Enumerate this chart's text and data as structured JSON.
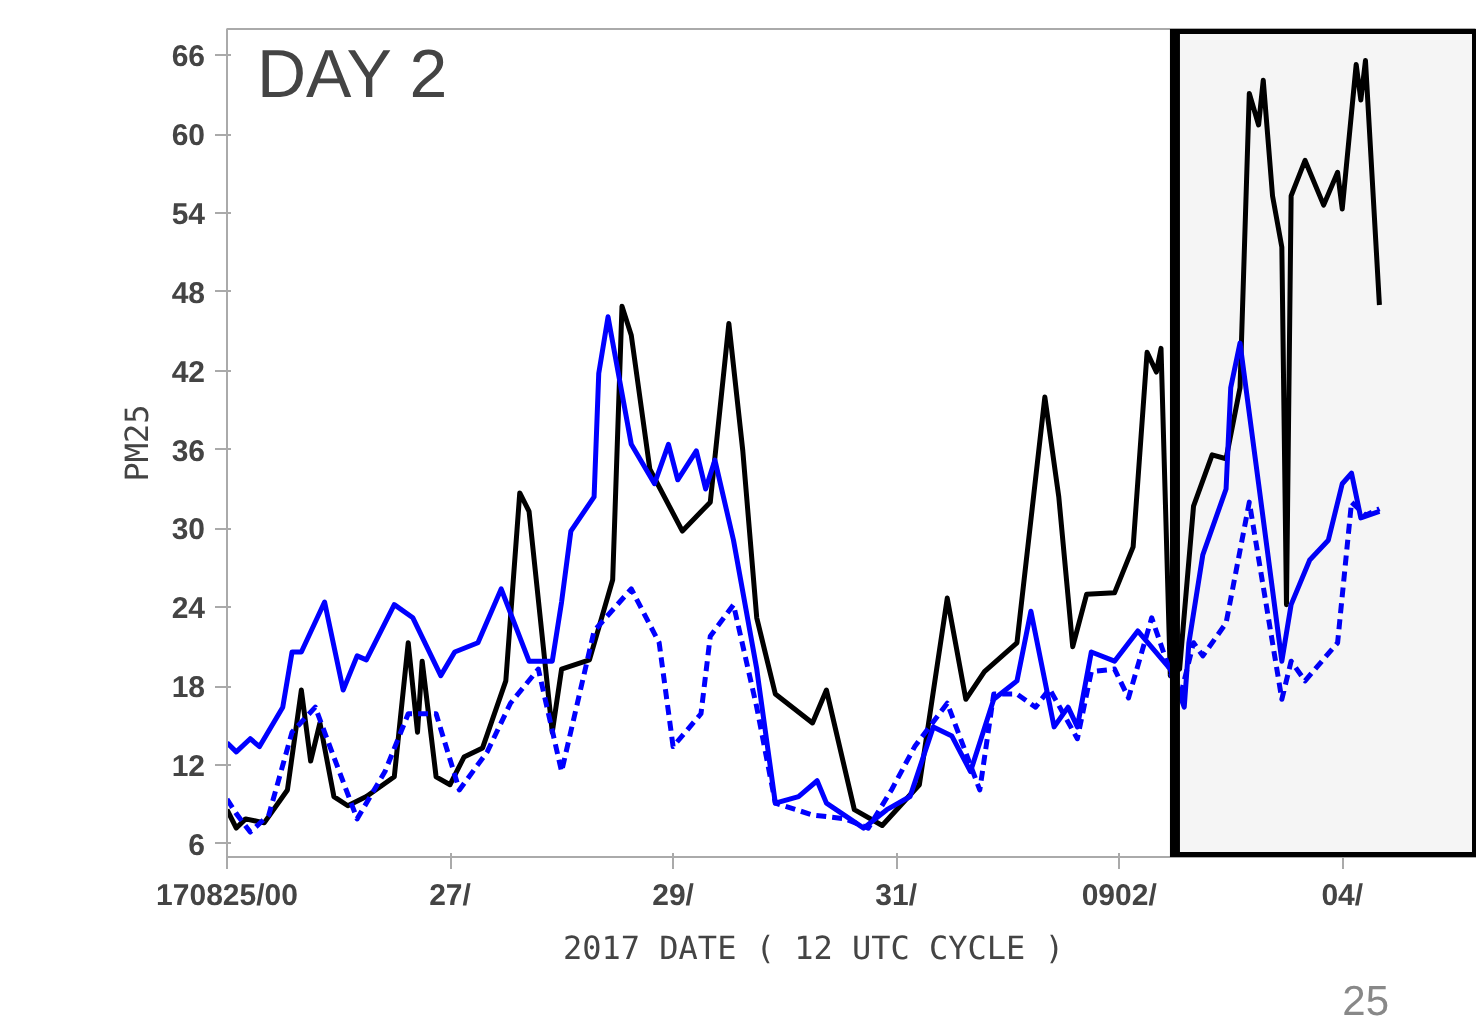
{
  "chart_data": {
    "type": "line",
    "xlabel": "2017    DATE  ( 12 UTC CYCLE )",
    "ylabel": "PM25",
    "annotations": [
      "DAY 2",
      "25"
    ],
    "xlim": [
      "2017-08-25T00:00",
      "2017-09-05T05:00"
    ],
    "ylim": [
      5,
      68
    ],
    "xticks": [
      {
        "value": "2017-08-25T00:00",
        "label": "170825/00"
      },
      {
        "value": "2017-08-27T00:00",
        "label": "27/"
      },
      {
        "value": "2017-08-29T00:00",
        "label": "29/"
      },
      {
        "value": "2017-08-31T00:00",
        "label": "31/"
      },
      {
        "value": "2017-09-02T00:00",
        "label": "0902/"
      },
      {
        "value": "2017-09-04T00:00",
        "label": "04/"
      }
    ],
    "yticks": [
      6,
      12,
      18,
      24,
      30,
      36,
      42,
      48,
      54,
      60,
      66
    ],
    "grid": false,
    "bands": [
      {
        "axis": "x",
        "from": "2017-09-02T12:00",
        "to": "2017-09-05T05:00",
        "color": "#000000"
      }
    ],
    "series": [
      {
        "color": "#000000",
        "line_style": "solid",
        "x": [
          "2017-08-25T00:00",
          "2017-08-25T02:00",
          "2017-08-25T04:00",
          "2017-08-25T08:00",
          "2017-08-25T13:00",
          "2017-08-25T16:00",
          "2017-08-25T18:00",
          "2017-08-25T20:00",
          "2017-08-25T23:00",
          "2017-08-26T02:00",
          "2017-08-26T06:00",
          "2017-08-26T12:00",
          "2017-08-26T15:00",
          "2017-08-26T17:00",
          "2017-08-26T18:00",
          "2017-08-26T21:00",
          "2017-08-27T00:00",
          "2017-08-27T03:00",
          "2017-08-27T07:00",
          "2017-08-27T12:00",
          "2017-08-27T15:00",
          "2017-08-27T17:00",
          "2017-08-27T22:00",
          "2017-08-28T00:00",
          "2017-08-28T06:00",
          "2017-08-28T11:00",
          "2017-08-28T13:00",
          "2017-08-28T15:00",
          "2017-08-28T19:00",
          "2017-08-29T02:00",
          "2017-08-29T08:00",
          "2017-08-29T12:00",
          "2017-08-29T15:00",
          "2017-08-29T18:00",
          "2017-08-29T22:00",
          "2017-08-30T06:00",
          "2017-08-30T09:00",
          "2017-08-30T15:00",
          "2017-08-30T21:00",
          "2017-08-31T05:00",
          "2017-08-31T11:00",
          "2017-08-31T15:00",
          "2017-08-31T19:00",
          "2017-09-01T02:00",
          "2017-09-01T08:00",
          "2017-09-01T11:00",
          "2017-09-01T14:00",
          "2017-09-01T17:00",
          "2017-09-01T23:00",
          "2017-09-02T03:00",
          "2017-09-02T06:00",
          "2017-09-02T08:00",
          "2017-09-02T09:00",
          "2017-09-02T11:00",
          "2017-09-02T13:00",
          "2017-09-02T16:00",
          "2017-09-02T20:00",
          "2017-09-02T23:00",
          "2017-09-03T02:00",
          "2017-09-03T04:00",
          "2017-09-03T06:00",
          "2017-09-03T07:00",
          "2017-09-03T09:00",
          "2017-09-03T11:00",
          "2017-09-03T12:00",
          "2017-09-03T13:00",
          "2017-09-03T16:00",
          "2017-09-03T20:00",
          "2017-09-03T23:00",
          "2017-09-04T00:00",
          "2017-09-04T03:00",
          "2017-09-04T04:00",
          "2017-09-04T05:00",
          "2017-09-04T08:00"
        ],
        "values": [
          8.6,
          7.2,
          7.9,
          7.6,
          10.1,
          17.7,
          12.3,
          15.2,
          9.6,
          8.9,
          9.6,
          11.1,
          21.3,
          14.5,
          19.9,
          11.1,
          10.5,
          12.6,
          13.3,
          18.4,
          32.7,
          31.3,
          14.5,
          19.3,
          20.0,
          26.1,
          46.9,
          44.7,
          34.5,
          29.8,
          32.0,
          45.6,
          35.9,
          23.2,
          17.4,
          15.2,
          17.7,
          8.6,
          7.4,
          10.5,
          24.7,
          17.0,
          19.1,
          21.3,
          40.0,
          32.4,
          21.0,
          25.0,
          25.1,
          28.6,
          43.4,
          41.9,
          43.7,
          18.8,
          19.3,
          31.7,
          35.6,
          35.3,
          40.7,
          63.1,
          60.7,
          64.1,
          55.3,
          51.4,
          24.2,
          55.3,
          58.0,
          54.6,
          57.1,
          54.3,
          65.3,
          62.6,
          65.6,
          47.0
        ]
      },
      {
        "color": "#0000ff",
        "line_style": "solid",
        "x": [
          "2017-08-25T00:00",
          "2017-08-25T02:00",
          "2017-08-25T05:00",
          "2017-08-25T07:00",
          "2017-08-25T12:00",
          "2017-08-25T14:00",
          "2017-08-25T16:00",
          "2017-08-25T21:00",
          "2017-08-26T01:00",
          "2017-08-26T04:00",
          "2017-08-26T06:00",
          "2017-08-26T12:00",
          "2017-08-26T16:00",
          "2017-08-26T22:00",
          "2017-08-27T01:00",
          "2017-08-27T06:00",
          "2017-08-27T11:00",
          "2017-08-27T17:00",
          "2017-08-27T22:00",
          "2017-08-28T00:00",
          "2017-08-28T02:00",
          "2017-08-28T07:00",
          "2017-08-28T08:00",
          "2017-08-28T10:00",
          "2017-08-28T15:00",
          "2017-08-28T20:00",
          "2017-08-28T23:00",
          "2017-08-29T01:00",
          "2017-08-29T05:00",
          "2017-08-29T07:00",
          "2017-08-29T09:00",
          "2017-08-29T13:00",
          "2017-08-29T18:00",
          "2017-08-29T22:00",
          "2017-08-30T03:00",
          "2017-08-30T07:00",
          "2017-08-30T09:00",
          "2017-08-30T17:00",
          "2017-08-30T22:00",
          "2017-08-31T03:00",
          "2017-08-31T08:00",
          "2017-08-31T12:00",
          "2017-08-31T16:00",
          "2017-08-31T21:00",
          "2017-09-01T02:00",
          "2017-09-01T05:00",
          "2017-09-01T10:00",
          "2017-09-01T13:00",
          "2017-09-01T15:00",
          "2017-09-01T18:00",
          "2017-09-01T23:00",
          "2017-09-02T04:00",
          "2017-09-02T11:00",
          "2017-09-02T14:00",
          "2017-09-02T15:00",
          "2017-09-02T18:00",
          "2017-09-02T23:00",
          "2017-09-03T00:00",
          "2017-09-03T02:00",
          "2017-09-03T06:00",
          "2017-09-03T11:00",
          "2017-09-03T13:00",
          "2017-09-03T17:00",
          "2017-09-03T21:00",
          "2017-09-04T00:00",
          "2017-09-04T02:00",
          "2017-09-04T04:00",
          "2017-09-04T08:00"
        ],
        "values": [
          13.7,
          13.0,
          14.0,
          13.4,
          16.4,
          20.6,
          20.6,
          24.4,
          17.7,
          20.3,
          20.0,
          24.2,
          23.2,
          18.8,
          20.6,
          21.3,
          25.4,
          19.9,
          19.9,
          24.4,
          29.8,
          32.4,
          41.8,
          46.1,
          36.4,
          33.4,
          36.4,
          33.7,
          35.9,
          33.0,
          35.2,
          29.1,
          19.3,
          9.1,
          9.6,
          10.8,
          9.1,
          7.2,
          8.6,
          9.6,
          14.9,
          14.2,
          11.5,
          17.0,
          18.4,
          23.7,
          14.9,
          16.4,
          14.9,
          20.6,
          19.9,
          22.2,
          19.3,
          16.4,
          21.3,
          28.0,
          33.0,
          40.7,
          44.1,
          33.4,
          19.9,
          24.2,
          27.6,
          29.1,
          33.4,
          34.2,
          30.8,
          31.3
        ]
      },
      {
        "color": "#0000ff",
        "line_style": "dashed",
        "x": [
          "2017-08-25T00:00",
          "2017-08-25T02:00",
          "2017-08-25T05:00",
          "2017-08-25T09:00",
          "2017-08-25T14:00",
          "2017-08-25T19:00",
          "2017-08-25T23:00",
          "2017-08-26T04:00",
          "2017-08-26T10:00",
          "2017-08-26T15:00",
          "2017-08-26T21:00",
          "2017-08-27T02:00",
          "2017-08-27T08:00",
          "2017-08-27T13:00",
          "2017-08-27T19:00",
          "2017-08-28T00:00",
          "2017-08-28T07:00",
          "2017-08-28T15:00",
          "2017-08-28T21:00",
          "2017-08-29T00:00",
          "2017-08-29T06:00",
          "2017-08-29T08:00",
          "2017-08-29T13:00",
          "2017-08-29T18:00",
          "2017-08-29T22:00",
          "2017-08-30T06:00",
          "2017-08-30T13:00",
          "2017-08-30T18:00",
          "2017-08-30T23:00",
          "2017-08-31T04:00",
          "2017-08-31T11:00",
          "2017-08-31T18:00",
          "2017-08-31T21:00",
          "2017-09-01T02:00",
          "2017-09-01T06:00",
          "2017-09-01T09:00",
          "2017-09-01T15:00",
          "2017-09-01T18:00",
          "2017-09-01T23:00",
          "2017-09-02T02:00",
          "2017-09-02T07:00",
          "2017-09-02T13:00",
          "2017-09-02T16:00",
          "2017-09-02T18:00",
          "2017-09-02T23:00",
          "2017-09-03T04:00",
          "2017-09-03T11:00",
          "2017-09-03T13:00",
          "2017-09-03T16:00",
          "2017-09-03T23:00",
          "2017-09-04T02:00",
          "2017-09-04T05:00",
          "2017-09-04T08:00"
        ],
        "values": [
          9.4,
          8.3,
          6.9,
          8.2,
          14.5,
          16.4,
          12.6,
          7.9,
          11.5,
          15.9,
          15.9,
          10.1,
          13.0,
          16.7,
          19.3,
          11.5,
          22.2,
          25.4,
          21.3,
          13.4,
          15.9,
          21.8,
          24.2,
          16.4,
          9.1,
          8.2,
          7.9,
          7.2,
          10.1,
          13.4,
          16.7,
          10.1,
          17.4,
          17.4,
          16.4,
          17.8,
          14.0,
          19.1,
          19.3,
          17.1,
          23.2,
          17.0,
          21.3,
          20.3,
          22.8,
          32.0,
          17.0,
          19.9,
          18.4,
          21.3,
          32.0,
          31.0,
          31.5
        ]
      }
    ]
  }
}
